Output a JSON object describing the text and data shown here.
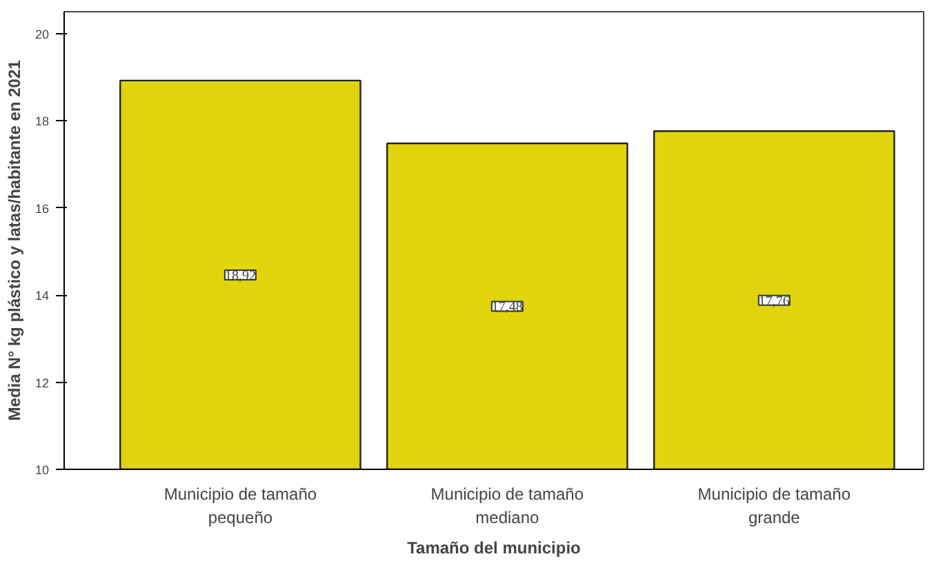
{
  "chart_data": {
    "type": "bar",
    "xlabel": "Tamaño del municipio",
    "ylabel": "Media N° kg plástico y latas/habitante en 2021",
    "categories": [
      "Municipio de tamaño\npequeño",
      "Municipio de tamaño\nmediano",
      "Municipio de tamaño\ngrande"
    ],
    "values": [
      18.92,
      17.48,
      17.76
    ],
    "value_labels": [
      "18,92",
      "17,48",
      "17,76"
    ],
    "color": "#e0d40c",
    "ylim": [
      10,
      20.5
    ],
    "yticks": [
      10,
      12,
      14,
      16,
      18,
      20
    ],
    "grid": false
  }
}
